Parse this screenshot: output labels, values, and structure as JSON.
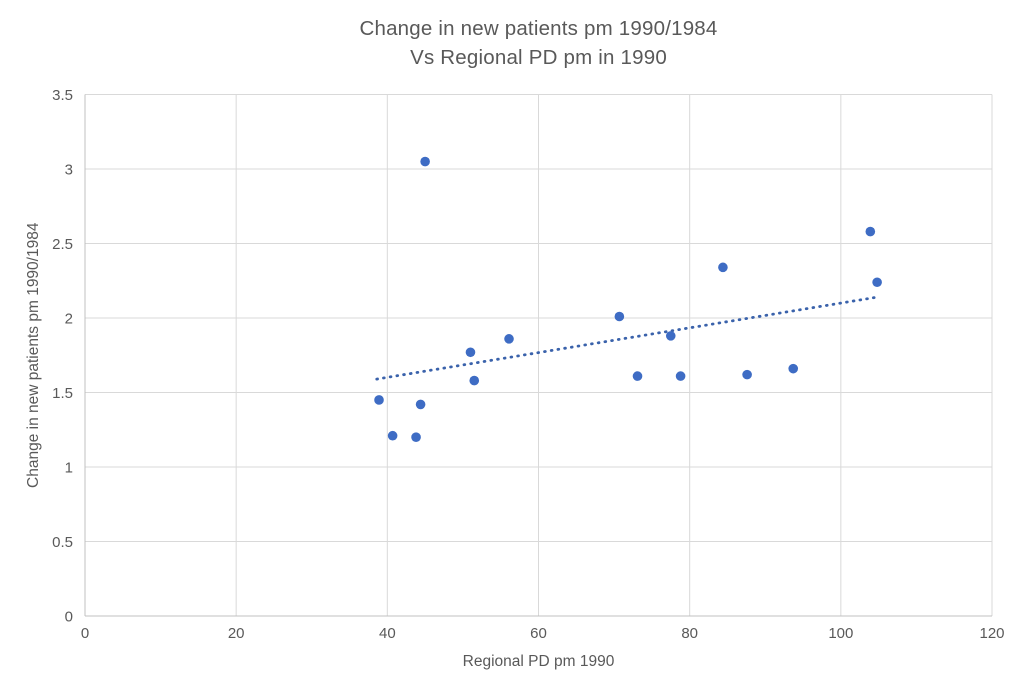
{
  "chart_data": {
    "type": "scatter",
    "title_line1": "Change in new patients pm 1990/1984",
    "title_line2": "Vs Regional PD pm in 1990",
    "xlabel": "Regional PD pm 1990",
    "ylabel": "Change in new patients  pm 1990/1984",
    "xlim": [
      0,
      120
    ],
    "ylim": [
      0,
      3.5
    ],
    "x_ticks": [
      0,
      20,
      40,
      60,
      80,
      100,
      120
    ],
    "y_ticks": [
      0,
      0.5,
      1,
      1.5,
      2,
      2.5,
      3,
      3.5
    ],
    "grid": true,
    "legend": "none",
    "points": [
      [
        38.9,
        1.45
      ],
      [
        40.7,
        1.21
      ],
      [
        43.8,
        1.2
      ],
      [
        44.4,
        1.42
      ],
      [
        45.0,
        3.05
      ],
      [
        51.0,
        1.77
      ],
      [
        51.5,
        1.58
      ],
      [
        56.1,
        1.86
      ],
      [
        70.7,
        2.01
      ],
      [
        73.1,
        1.61
      ],
      [
        77.5,
        1.88
      ],
      [
        78.8,
        1.61
      ],
      [
        84.4,
        2.34
      ],
      [
        87.6,
        1.62
      ],
      [
        93.7,
        1.66
      ],
      [
        103.9,
        2.58
      ],
      [
        104.8,
        2.24
      ]
    ],
    "trendline": {
      "style": "dotted",
      "x1": 38.6,
      "y1": 1.59,
      "x2": 104.8,
      "y2": 2.14
    },
    "colors": {
      "marker": "#3E6CC4",
      "trendline": "#3A62AB",
      "gridline": "#D9D9D9",
      "axis_line": "#C0C0C0",
      "text": "#595959",
      "background": "#FFFFFF"
    }
  }
}
